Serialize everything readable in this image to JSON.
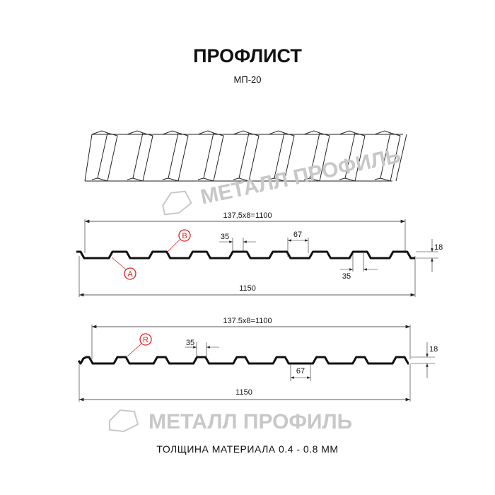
{
  "title": "ПРОФЛИСТ",
  "subtitle": "МП-20",
  "watermark": "МЕТАЛЛ ПРОФИЛЬ",
  "profile_a": {
    "pitch_label": "137,5x8=1100",
    "width_label": "1150",
    "top_width_label": "35",
    "bottom_width_label": "35",
    "gap_label": "67",
    "height_label": "18",
    "marker_a": "A",
    "marker_b": "B"
  },
  "profile_b": {
    "pitch_label": "137.5x8=1100",
    "width_label": "1150",
    "top_width_label": "35",
    "gap_label": "67",
    "height_label": "18",
    "marker_r": "R"
  },
  "footer": "ТОЛЩИНА МАТЕРИАЛА 0.4 - 0.8 ММ",
  "colors": {
    "line": "#111111",
    "marker": "#e02020",
    "watermark": "#c8c8c8"
  }
}
